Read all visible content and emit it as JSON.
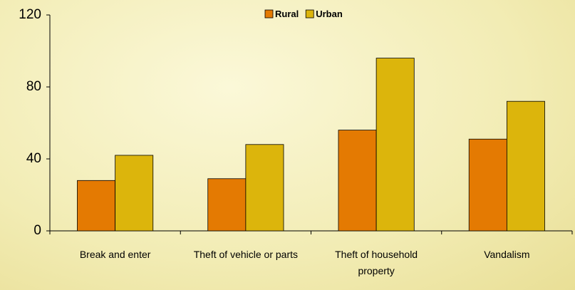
{
  "chart_data": {
    "type": "bar",
    "categories": [
      "Break and enter",
      "Theft of vehicle or parts",
      "Theft of household property",
      "Vandalism"
    ],
    "series": [
      {
        "name": "Rural",
        "color": "#e47a02",
        "values": [
          28,
          29,
          56,
          51
        ]
      },
      {
        "name": "Urban",
        "color": "#dcb50c",
        "values": [
          42,
          48,
          96,
          72
        ]
      }
    ],
    "ylim": [
      0,
      120
    ],
    "yticks": [
      0,
      40,
      80,
      120
    ],
    "grid": false,
    "legend": "top"
  }
}
